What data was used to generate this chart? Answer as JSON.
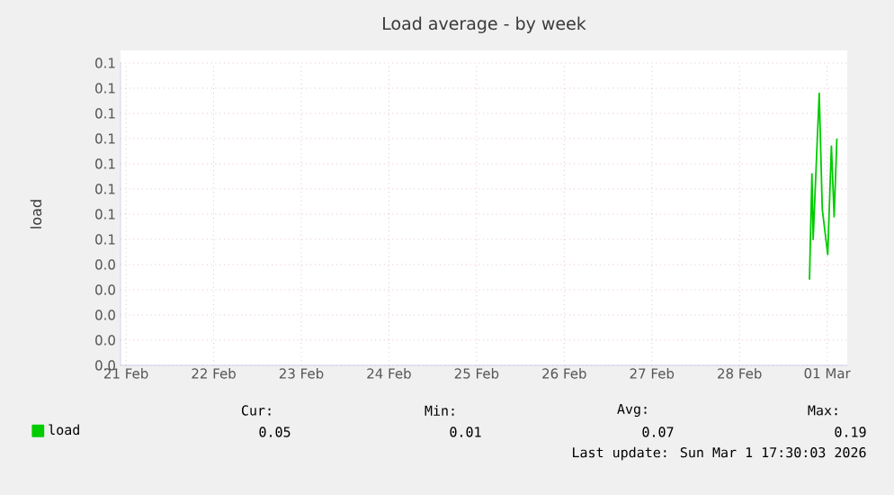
{
  "chart_data": {
    "type": "line",
    "title": "Load average - by week",
    "ylabel": "load",
    "x": [
      "2026-03-01T07:10",
      "2026-03-01T07:50",
      "2026-03-01T08:10",
      "2026-03-01T09:50",
      "2026-03-01T10:40",
      "2026-03-01T12:10",
      "2026-03-01T13:10",
      "2026-03-01T13:55",
      "2026-03-01T14:40"
    ],
    "series": [
      {
        "name": "load",
        "color": "#00cc00",
        "values": [
          0.034,
          0.076,
          0.05,
          0.108,
          0.062,
          0.044,
          0.087,
          0.059,
          0.09
        ]
      }
    ],
    "xlim": [
      "2026-02-21T10:30",
      "2026-03-01T17:30"
    ],
    "ylim": [
      0,
      0.12
    ],
    "xticks": [
      {
        "value": "2026-02-21T12:00",
        "label": "21 Feb"
      },
      {
        "value": "2026-02-22T12:00",
        "label": "22 Feb"
      },
      {
        "value": "2026-02-23T12:00",
        "label": "23 Feb"
      },
      {
        "value": "2026-02-24T12:00",
        "label": "24 Feb"
      },
      {
        "value": "2026-02-25T12:00",
        "label": "25 Feb"
      },
      {
        "value": "2026-02-26T12:00",
        "label": "26 Feb"
      },
      {
        "value": "2026-02-27T12:00",
        "label": "27 Feb"
      },
      {
        "value": "2026-02-28T12:00",
        "label": "28 Feb"
      },
      {
        "value": "2026-03-01T12:00",
        "label": "01 Mar"
      }
    ],
    "yticks": [
      {
        "value": 0,
        "label": "0.0"
      },
      {
        "value": 0.01,
        "label": "0.0"
      },
      {
        "value": 0.02,
        "label": "0.0"
      },
      {
        "value": 0.03,
        "label": "0.0"
      },
      {
        "value": 0.04,
        "label": "0.0"
      },
      {
        "value": 0.05,
        "label": "0.1"
      },
      {
        "value": 0.06,
        "label": "0.1"
      },
      {
        "value": 0.07,
        "label": "0.1"
      },
      {
        "value": 0.08,
        "label": "0.1"
      },
      {
        "value": 0.09,
        "label": "0.1"
      },
      {
        "value": 0.1,
        "label": "0.1"
      },
      {
        "value": 0.11,
        "label": "0.1"
      },
      {
        "value": 0.12,
        "label": "0.1"
      }
    ],
    "grid": true,
    "legend": "bottom",
    "marker": "none",
    "line_style": "solid",
    "annotations": [
      "Cur:",
      "Min:",
      "Avg:",
      "Max:",
      "0.05",
      "0.01",
      "0.07",
      "0.19",
      "Last update: Sun Mar  1 17:30:03 2026"
    ]
  }
}
